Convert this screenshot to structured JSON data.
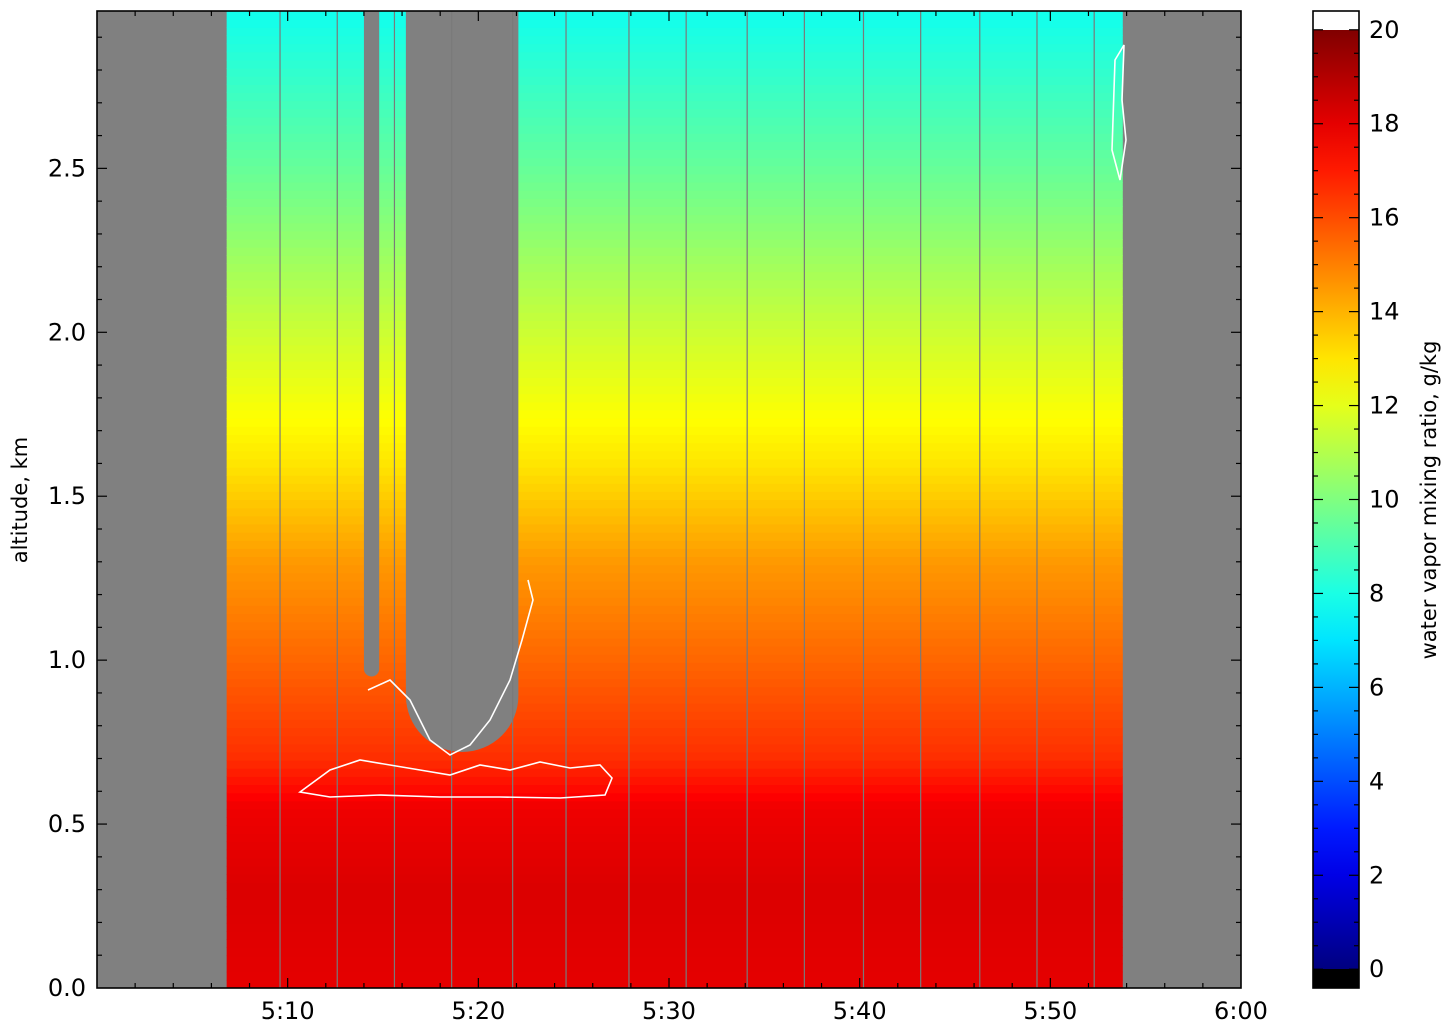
{
  "chart_data": {
    "type": "heatmap",
    "title": "",
    "xlabel": "",
    "ylabel": "altitude, km",
    "x_ticks": [
      "5:10",
      "5:20",
      "5:30",
      "5:40",
      "5:50",
      "6:00"
    ],
    "x_tick_minutes": [
      10,
      20,
      30,
      40,
      50,
      60
    ],
    "xlim_minutes": [
      0,
      60
    ],
    "y_ticks": [
      "0.0",
      "0.5",
      "1.0",
      "1.5",
      "2.0",
      "2.5"
    ],
    "y_tick_values": [
      0.0,
      0.5,
      1.0,
      1.5,
      2.0,
      2.5
    ],
    "ylim": [
      0.0,
      2.98
    ],
    "data_extent_minutes": [
      6.8,
      53.8
    ],
    "grid": false,
    "colorbar": {
      "label": "water vapor mixing ratio, g/kg",
      "ticks": [
        "0",
        "2",
        "4",
        "6",
        "8",
        "10",
        "12",
        "14",
        "16",
        "18",
        "20"
      ],
      "tick_values": [
        0,
        2,
        4,
        6,
        8,
        10,
        12,
        14,
        16,
        18,
        20
      ],
      "range": [
        -0.4,
        20.4
      ],
      "colormap": "jet",
      "under_color": "#000000",
      "over_color": "#ffffff"
    },
    "missing_color": "#808080",
    "profile": [
      {
        "altitude": 0.0,
        "value": 18.0
      },
      {
        "altitude": 0.3,
        "value": 18.2
      },
      {
        "altitude": 0.55,
        "value": 17.8
      },
      {
        "altitude": 0.7,
        "value": 16.6
      },
      {
        "altitude": 1.0,
        "value": 15.5
      },
      {
        "altitude": 1.3,
        "value": 14.5
      },
      {
        "altitude": 1.6,
        "value": 13.0
      },
      {
        "altitude": 2.0,
        "value": 11.5
      },
      {
        "altitude": 2.5,
        "value": 9.5
      },
      {
        "altitude": 2.98,
        "value": 7.8
      }
    ],
    "no_data_gaps": [
      {
        "x_start": 14.0,
        "x_end": 14.8,
        "y_min": 0.95
      },
      {
        "x_start": 16.2,
        "x_end": 22.1,
        "y_min": 0.72
      }
    ],
    "vertical_lines_minutes": [
      9.6,
      12.6,
      15.6,
      18.6,
      21.8,
      24.6,
      27.9,
      30.9,
      34.1,
      37.1,
      40.2,
      43.2,
      46.3,
      49.3,
      52.3
    ]
  }
}
